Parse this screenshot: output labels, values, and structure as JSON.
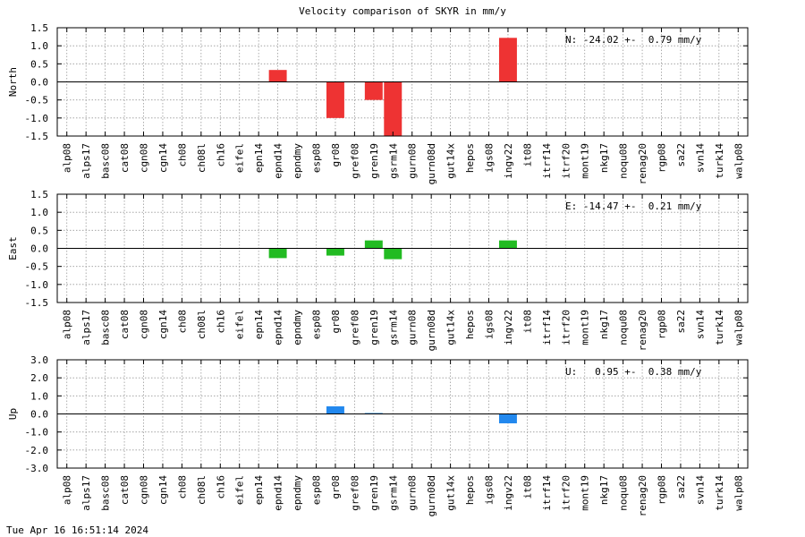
{
  "title": "Velocity comparison of SKYR in mm/y",
  "timestamp": "Tue Apr 16 16:51:14 2024",
  "colors": {
    "north": "#ee3333",
    "east": "#22bb22",
    "up": "#2288ee"
  },
  "chart_data": [
    {
      "type": "bar",
      "ylabel": "North",
      "summary": "N: -24.02 +-  0.79 mm/y",
      "ylim": [
        -1.5,
        1.5
      ],
      "yticks": [
        "1.5",
        "1.0",
        "0.5",
        "0.0",
        "-0.5",
        "-1.0",
        "-1.5"
      ],
      "grid": true,
      "categories": [
        "alp08",
        "alps17",
        "basc08",
        "cat08",
        "cgn08",
        "cgn14",
        "ch08",
        "ch08l",
        "ch16",
        "eifel",
        "epn14",
        "epnd14",
        "epndmy",
        "esp08",
        "gr08",
        "gref08",
        "gren19",
        "gsrm14",
        "gurn08",
        "gurn08d",
        "gut14x",
        "hepos",
        "igs08",
        "ingv22",
        "it08",
        "itrf14",
        "itrf20",
        "mont19",
        "nkg17",
        "noqu08",
        "renag20",
        "rgp08",
        "sa22",
        "svn14",
        "turk14",
        "walp08"
      ],
      "values": [
        null,
        null,
        null,
        null,
        null,
        null,
        null,
        null,
        null,
        null,
        null,
        0.33,
        null,
        null,
        -1.0,
        null,
        -0.5,
        -1.5,
        null,
        null,
        null,
        null,
        null,
        1.22,
        null,
        null,
        null,
        null,
        null,
        null,
        null,
        null,
        null,
        null,
        null,
        null
      ]
    },
    {
      "type": "bar",
      "ylabel": "East",
      "summary": "E: -14.47 +-  0.21 mm/y",
      "ylim": [
        -1.5,
        1.5
      ],
      "yticks": [
        "1.5",
        "1.0",
        "0.5",
        "0.0",
        "-0.5",
        "-1.0",
        "-1.5"
      ],
      "grid": true,
      "categories": [
        "alp08",
        "alps17",
        "basc08",
        "cat08",
        "cgn08",
        "cgn14",
        "ch08",
        "ch08l",
        "ch16",
        "eifel",
        "epn14",
        "epnd14",
        "epndmy",
        "esp08",
        "gr08",
        "gref08",
        "gren19",
        "gsrm14",
        "gurn08",
        "gurn08d",
        "gut14x",
        "hepos",
        "igs08",
        "ingv22",
        "it08",
        "itrf14",
        "itrf20",
        "mont19",
        "nkg17",
        "noqu08",
        "renag20",
        "rgp08",
        "sa22",
        "svn14",
        "turk14",
        "walp08"
      ],
      "values": [
        null,
        null,
        null,
        null,
        null,
        null,
        null,
        null,
        null,
        null,
        null,
        -0.27,
        null,
        null,
        -0.2,
        null,
        0.22,
        -0.3,
        null,
        null,
        null,
        null,
        null,
        0.22,
        null,
        null,
        null,
        null,
        null,
        null,
        null,
        null,
        null,
        null,
        null,
        null
      ]
    },
    {
      "type": "bar",
      "ylabel": "Up",
      "summary": "U:   0.95 +-  0.38 mm/y",
      "ylim": [
        -3.0,
        3.0
      ],
      "yticks": [
        "3.0",
        "2.0",
        "1.0",
        "0.0",
        "-1.0",
        "-2.0",
        "-3.0"
      ],
      "grid": true,
      "categories": [
        "alp08",
        "alps17",
        "basc08",
        "cat08",
        "cgn08",
        "cgn14",
        "ch08",
        "ch08l",
        "ch16",
        "eifel",
        "epn14",
        "epnd14",
        "epndmy",
        "esp08",
        "gr08",
        "gref08",
        "gren19",
        "gsrm14",
        "gurn08",
        "gurn08d",
        "gut14x",
        "hepos",
        "igs08",
        "ingv22",
        "it08",
        "itrf14",
        "itrf20",
        "mont19",
        "nkg17",
        "noqu08",
        "renag20",
        "rgp08",
        "sa22",
        "svn14",
        "turk14",
        "walp08"
      ],
      "values": [
        null,
        null,
        null,
        null,
        null,
        null,
        null,
        null,
        null,
        null,
        null,
        null,
        null,
        null,
        0.42,
        null,
        0.05,
        null,
        null,
        null,
        null,
        null,
        null,
        -0.52,
        null,
        null,
        null,
        null,
        null,
        null,
        null,
        null,
        null,
        null,
        null,
        null
      ]
    }
  ]
}
